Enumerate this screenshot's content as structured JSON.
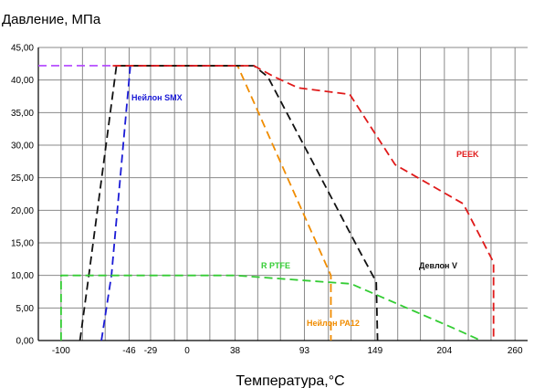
{
  "chart_data": {
    "type": "line",
    "title": "",
    "ylabel": "Давление, МПа",
    "xlabel": "Температура,°C",
    "ylim": [
      0,
      45
    ],
    "xlim": [
      -118,
      270
    ],
    "x_ticks": [
      -100,
      -46,
      -29,
      0,
      38,
      93,
      149,
      204,
      260
    ],
    "x_tick_labels": [
      "-100",
      "-46",
      "-29",
      "0",
      "38",
      "93",
      "149",
      "204",
      "260"
    ],
    "x_gridlines": [
      -100,
      -83,
      -65,
      -46,
      -29,
      -10,
      0,
      18,
      38,
      56,
      74,
      93,
      112,
      130,
      149,
      167,
      185,
      204,
      223,
      241,
      260
    ],
    "y_ticks": [
      0,
      5,
      10,
      15,
      20,
      25,
      30,
      35,
      40,
      45
    ],
    "y_tick_labels": [
      "0,00",
      "5,00",
      "10,00",
      "15,00",
      "20,00",
      "25,00",
      "30,00",
      "35,00",
      "40,00",
      "45,00"
    ],
    "grid": true,
    "reference_line": {
      "y": 42.2,
      "color": "#b040ff"
    },
    "series": [
      {
        "name": "Нейлон SMX",
        "color": "#1a1ad6",
        "points": [
          [
            -68,
            0
          ],
          [
            -60,
            10
          ],
          [
            -45,
            42.2
          ],
          [
            40,
            42.2
          ]
        ]
      },
      {
        "name": "Нейлон PA12",
        "color": "#f08c00",
        "points": [
          [
            -55,
            42.2
          ],
          [
            40,
            42.2
          ],
          [
            114,
            10
          ],
          [
            114,
            0
          ]
        ]
      },
      {
        "name": "Девлон V",
        "color": "#111111",
        "points": [
          [
            -85,
            0
          ],
          [
            -78,
            10
          ],
          [
            -56,
            42.2
          ],
          [
            53,
            42.2
          ],
          [
            64,
            40.5
          ],
          [
            136,
            14
          ],
          [
            150,
            9
          ],
          [
            151,
            0
          ]
        ]
      },
      {
        "name": "PEEK",
        "color": "#e01a1a",
        "points": [
          [
            -59,
            42.2
          ],
          [
            53,
            42.2
          ],
          [
            69,
            40.5
          ],
          [
            88,
            38.8
          ],
          [
            129,
            37.8
          ],
          [
            165,
            27
          ],
          [
            219,
            21
          ],
          [
            243,
            12
          ],
          [
            243,
            0
          ]
        ]
      },
      {
        "name": "R PTFE",
        "color": "#33cc33",
        "points": [
          [
            -100,
            0
          ],
          [
            -100,
            10
          ],
          [
            38,
            10
          ],
          [
            130,
            8.7
          ],
          [
            210,
            2
          ],
          [
            233,
            0
          ]
        ]
      }
    ],
    "annotations": [
      {
        "text": "Нейлон SMX",
        "series": "Нейлон SMX"
      },
      {
        "text": "PEEK",
        "series": "PEEK"
      },
      {
        "text": "R PTFE",
        "series": "R PTFE"
      },
      {
        "text": "Девлон V",
        "series": "Девлон V"
      },
      {
        "text": "Нейлон PA12",
        "series": "Нейлон PA12"
      }
    ]
  }
}
